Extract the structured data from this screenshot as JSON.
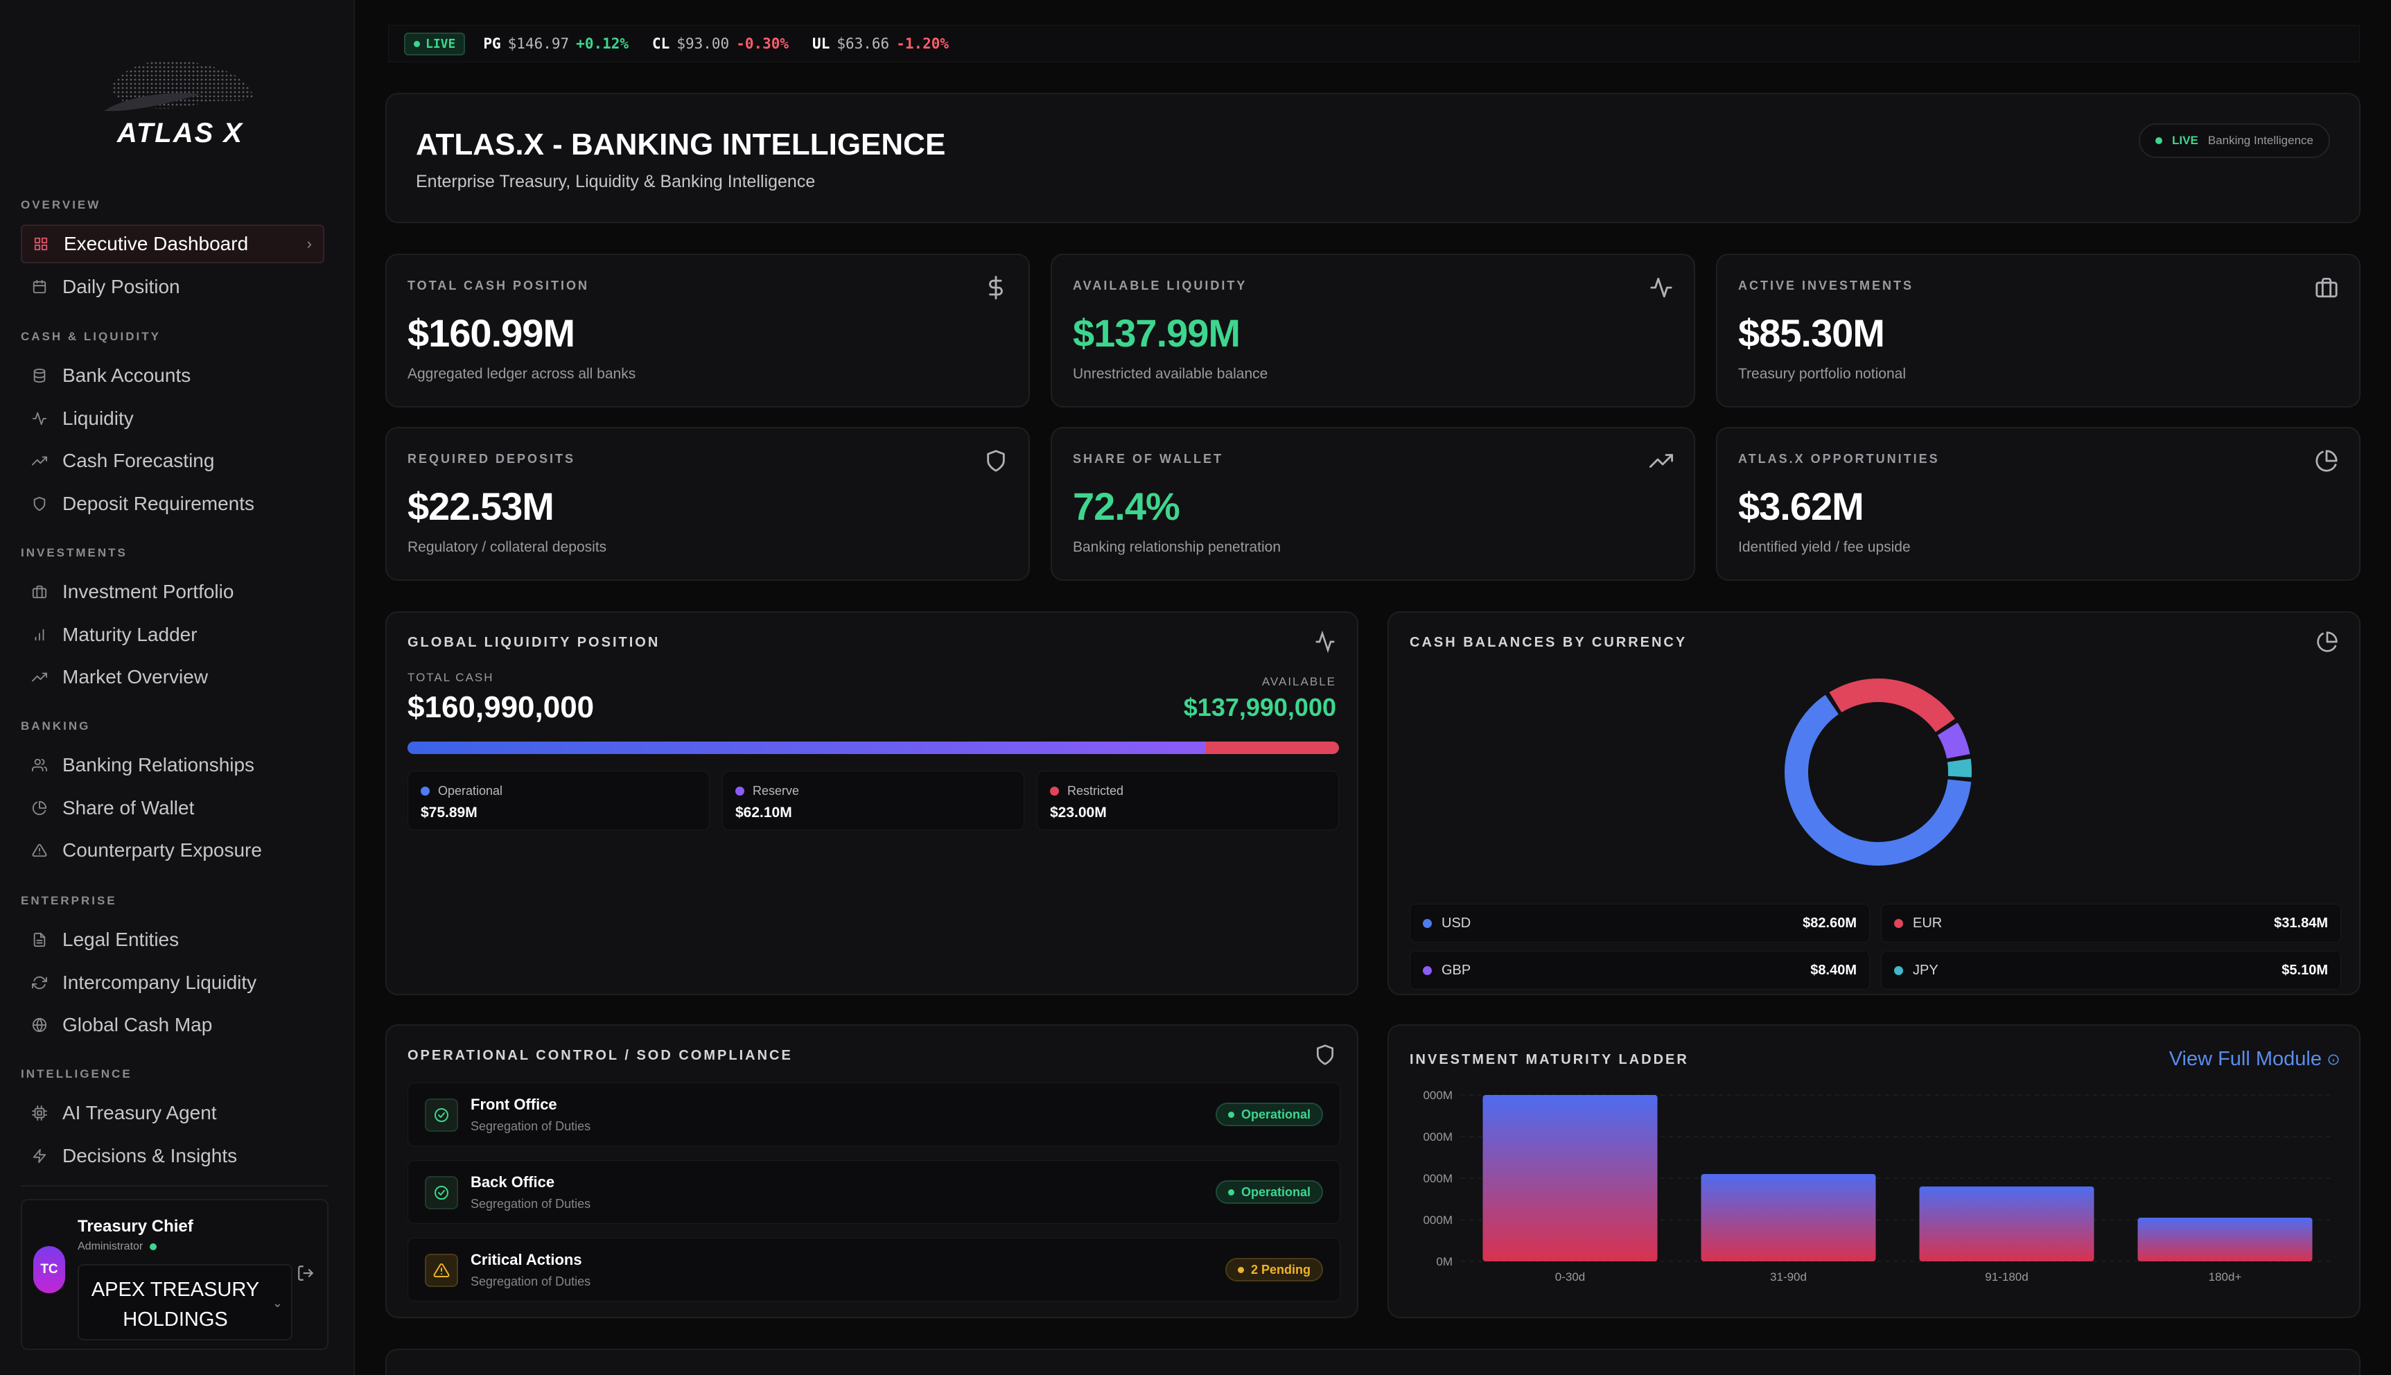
{
  "brand": {
    "name": "ATLAS X"
  },
  "sidebar": {
    "sections": [
      {
        "title": "OVERVIEW",
        "items": [
          {
            "label": "Executive Dashboard",
            "icon": "grid-icon",
            "active": true
          },
          {
            "label": "Daily Position",
            "icon": "calendar-icon"
          }
        ]
      },
      {
        "title": "CASH & LIQUIDITY",
        "items": [
          {
            "label": "Bank Accounts",
            "icon": "database-icon"
          },
          {
            "label": "Liquidity",
            "icon": "activity-icon"
          },
          {
            "label": "Cash Forecasting",
            "icon": "trending-up-icon"
          },
          {
            "label": "Deposit Requirements",
            "icon": "shield-icon"
          }
        ]
      },
      {
        "title": "INVESTMENTS",
        "items": [
          {
            "label": "Investment Portfolio",
            "icon": "briefcase-icon"
          },
          {
            "label": "Maturity Ladder",
            "icon": "bar-chart-icon"
          },
          {
            "label": "Market Overview",
            "icon": "trending-up-icon"
          }
        ]
      },
      {
        "title": "BANKING",
        "items": [
          {
            "label": "Banking Relationships",
            "icon": "users-icon"
          },
          {
            "label": "Share of Wallet",
            "icon": "pie-chart-icon"
          },
          {
            "label": "Counterparty Exposure",
            "icon": "alert-triangle-icon"
          }
        ]
      },
      {
        "title": "ENTERPRISE",
        "items": [
          {
            "label": "Legal Entities",
            "icon": "file-icon"
          },
          {
            "label": "Intercompany Liquidity",
            "icon": "refresh-icon"
          },
          {
            "label": "Global Cash Map",
            "icon": "globe-icon"
          }
        ]
      },
      {
        "title": "INTELLIGENCE",
        "items": [
          {
            "label": "AI Treasury Agent",
            "icon": "cpu-icon"
          },
          {
            "label": "Decisions & Insights",
            "icon": "zap-icon"
          }
        ]
      }
    ],
    "user": {
      "name": "Treasury Chief",
      "role": "Administrator",
      "initials": "TC",
      "org": "APEX TREASURY HOLDINGS"
    }
  },
  "ticker": {
    "live": "LIVE",
    "items": [
      {
        "symbol": "PG",
        "price": "$146.97",
        "change": "+0.12%",
        "dir": "up"
      },
      {
        "symbol": "CL",
        "price": "$93.00",
        "change": "-0.30%",
        "dir": "down"
      },
      {
        "symbol": "UL",
        "price": "$63.66",
        "change": "-1.20%",
        "dir": "down"
      }
    ]
  },
  "header": {
    "title": "ATLAS.X - BANKING INTELLIGENCE",
    "subtitle": "Enterprise Treasury, Liquidity & Banking Intelligence",
    "live": "LIVE",
    "live_label": "Banking Intelligence"
  },
  "kpis": [
    {
      "label": "TOTAL CASH POSITION",
      "value": "$160.99M",
      "sub": "Aggregated ledger across all banks",
      "icon": "dollar-icon"
    },
    {
      "label": "AVAILABLE LIQUIDITY",
      "value": "$137.99M",
      "sub": "Unrestricted available balance",
      "icon": "activity-icon"
    },
    {
      "label": "ACTIVE INVESTMENTS",
      "value": "$85.30M",
      "sub": "Treasury portfolio notional",
      "icon": "briefcase-icon"
    },
    {
      "label": "REQUIRED DEPOSITS",
      "value": "$22.53M",
      "sub": "Regulatory / collateral deposits",
      "icon": "shield-icon"
    },
    {
      "label": "SHARE OF WALLET",
      "value": "72.4%",
      "sub": "Banking relationship penetration",
      "icon": "trending-up-icon"
    },
    {
      "label": "ATLAS.X OPPORTUNITIES",
      "value": "$3.62M",
      "sub": "Identified yield / fee upside",
      "icon": "pie-chart-icon"
    }
  ],
  "liquidity": {
    "title": "GLOBAL LIQUIDITY POSITION",
    "total_label": "TOTAL CASH",
    "total_value": "$160,990,000",
    "available_label": "AVAILABLE",
    "available_value": "$137,990,000",
    "available_fraction": 0.857,
    "breakdown": [
      {
        "name": "Operational",
        "value": "$75.89M",
        "color": "#4f7cf0"
      },
      {
        "name": "Reserve",
        "value": "$62.10M",
        "color": "#8b5cf6"
      },
      {
        "name": "Restricted",
        "value": "$23.00M",
        "color": "#e0455c"
      }
    ]
  },
  "currency": {
    "title": "CASH BALANCES BY CURRENCY",
    "items": [
      {
        "code": "USD",
        "value": "$82.60M",
        "amount": 82.6,
        "color": "#4f7cf0"
      },
      {
        "code": "EUR",
        "value": "$31.84M",
        "amount": 31.84,
        "color": "#e0455c"
      },
      {
        "code": "GBP",
        "value": "$8.40M",
        "amount": 8.4,
        "color": "#8b5cf6"
      },
      {
        "code": "JPY",
        "value": "$5.10M",
        "amount": 5.1,
        "color": "#3fb8c9"
      }
    ]
  },
  "controls": {
    "title": "OPERATIONAL CONTROL / SOD COMPLIANCE",
    "rows": [
      {
        "title": "Front Office",
        "sub": "Segregation of Duties",
        "status": "Operational",
        "kind": "ok"
      },
      {
        "title": "Back Office",
        "sub": "Segregation of Duties",
        "status": "Operational",
        "kind": "ok"
      },
      {
        "title": "Critical Actions",
        "sub": "Segregation of Duties",
        "status": "2 Pending",
        "kind": "warn"
      }
    ]
  },
  "chart_data": {
    "type": "bar",
    "title": "INVESTMENT MATURITY LADDER",
    "link": "View Full Module",
    "categories": [
      "0-30d",
      "31-90d",
      "91-180d",
      "180d+"
    ],
    "values": [
      40,
      21,
      18,
      10.5
    ],
    "yticks": [
      "0M",
      "000M",
      "000M",
      "000M",
      "000M"
    ],
    "ylim": [
      0,
      40
    ],
    "colors": {
      "top": "#4f6cf0",
      "bottom": "#d8324f"
    }
  }
}
